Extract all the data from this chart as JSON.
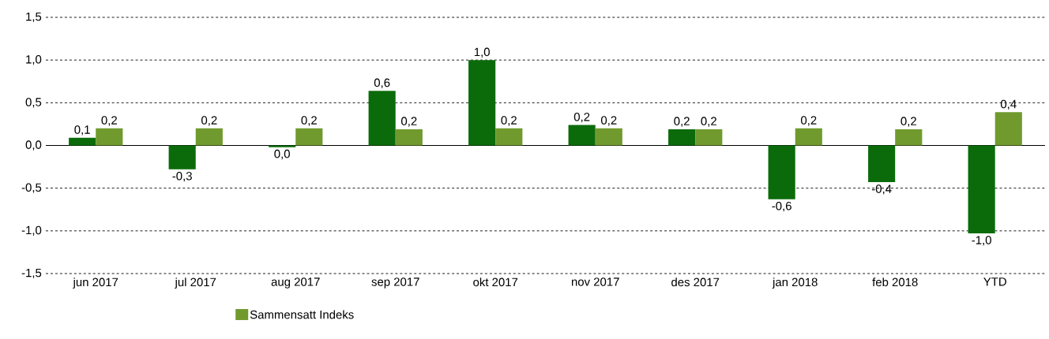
{
  "chart_data": {
    "type": "bar",
    "categories": [
      "jun 2017",
      "jul 2017",
      "aug 2017",
      "sep 2017",
      "okt 2017",
      "nov 2017",
      "des 2017",
      "jan 2018",
      "feb 2018",
      "YTD"
    ],
    "series": [
      {
        "color": "#0b6b0b",
        "values": [
          0.09,
          -0.28,
          -0.02,
          0.64,
          1.0,
          0.24,
          0.19,
          -0.63,
          -0.43,
          -1.03
        ],
        "value_labels": [
          "0,1",
          "-0,3",
          "0,0",
          "0,6",
          "1,0",
          "0,2",
          "0,2",
          "-0,6",
          "-0,4",
          "-1,0"
        ]
      },
      {
        "name": "Sammensatt Indeks",
        "color": "#709a2e",
        "values": [
          0.2,
          0.2,
          0.2,
          0.19,
          0.2,
          0.2,
          0.19,
          0.2,
          0.19,
          0.39
        ],
        "value_labels": [
          "0,2",
          "0,2",
          "0,2",
          "0,2",
          "0,2",
          "0,2",
          "0,2",
          "0,2",
          "0,2",
          "0,4"
        ]
      }
    ],
    "ylim": [
      -1.5,
      1.5
    ],
    "yticks": [
      {
        "value": -1.5,
        "label": "-1,5"
      },
      {
        "value": -1.0,
        "label": "-1,0"
      },
      {
        "value": -0.5,
        "label": "-0,5"
      },
      {
        "value": 0.0,
        "label": "0,0"
      },
      {
        "value": 0.5,
        "label": "0,5"
      },
      {
        "value": 1.0,
        "label": "1,0"
      },
      {
        "value": 1.5,
        "label": "1,5"
      }
    ],
    "grid": "y",
    "legend": "bottom"
  }
}
